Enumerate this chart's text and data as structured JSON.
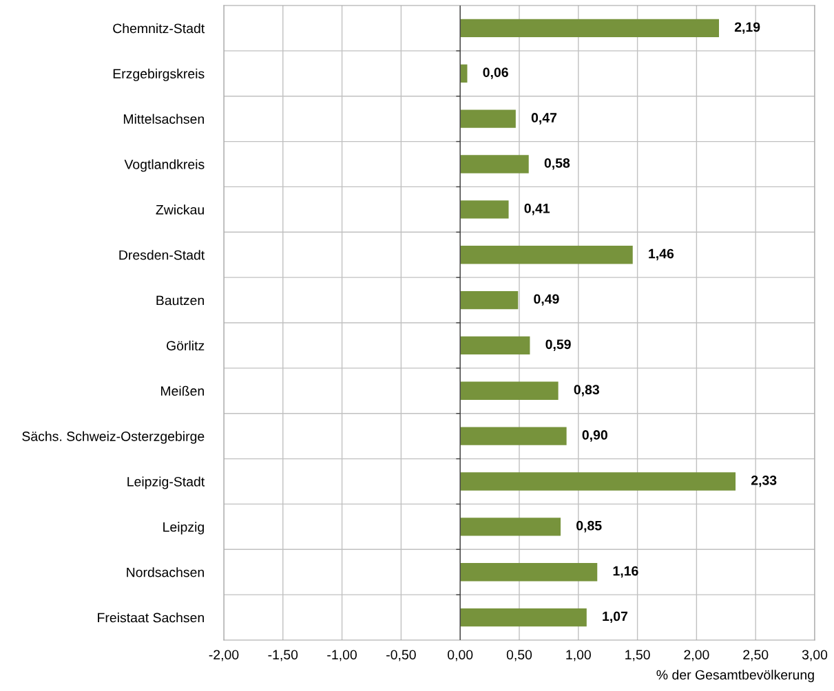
{
  "chart_data": {
    "type": "bar",
    "orientation": "horizontal",
    "xlabel": "% der Gesamtbevölkerung",
    "categories": [
      "Chemnitz-Stadt",
      "Erzgebirgskreis",
      "Mittelsachsen",
      "Vogtlandkreis",
      "Zwickau",
      "Dresden-Stadt",
      "Bautzen",
      "Görlitz",
      "Meißen",
      "Sächs. Schweiz-Osterzgebirge",
      "Leipzig-Stadt",
      "Leipzig",
      "Nordsachsen",
      "Freistaat Sachsen"
    ],
    "values": [
      2.19,
      0.06,
      0.47,
      0.58,
      0.41,
      1.46,
      0.49,
      0.59,
      0.83,
      0.9,
      2.33,
      0.85,
      1.16,
      1.07
    ],
    "value_labels": [
      "2,19",
      "0,06",
      "0,47",
      "0,58",
      "0,41",
      "1,46",
      "0,49",
      "0,59",
      "0,83",
      "0,90",
      "2,33",
      "0,85",
      "1,16",
      "1,07"
    ],
    "color": "#77933c",
    "xlim": [
      -2,
      3
    ],
    "xticks": [
      {
        "value": -2,
        "label": "-2,00"
      },
      {
        "value": -1.5,
        "label": "-1,50"
      },
      {
        "value": -1,
        "label": "-1,00"
      },
      {
        "value": -0.5,
        "label": "-0,50"
      },
      {
        "value": 0,
        "label": "0,00"
      },
      {
        "value": 0.5,
        "label": "0,50"
      },
      {
        "value": 1,
        "label": "1,00"
      },
      {
        "value": 1.5,
        "label": "1,50"
      },
      {
        "value": 2,
        "label": "2,00"
      },
      {
        "value": 2.5,
        "label": "2,50"
      },
      {
        "value": 3,
        "label": "3,00"
      }
    ],
    "grid": true
  }
}
